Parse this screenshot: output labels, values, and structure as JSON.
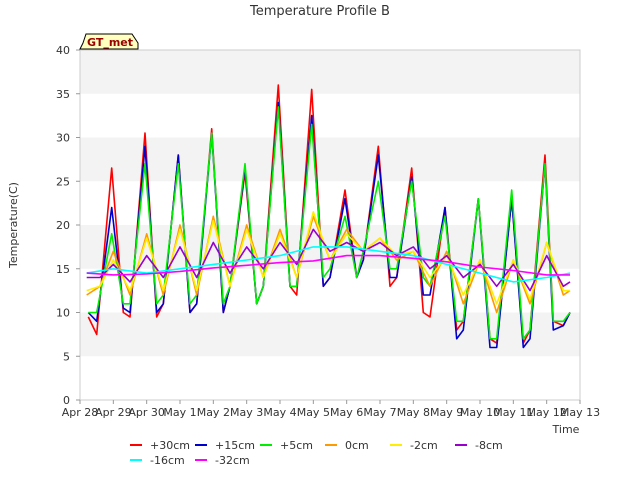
{
  "chart_data": {
    "type": "line",
    "title": "Temperature Profile B",
    "xlabel": "Time",
    "ylabel": "Temperature(C)",
    "ylim": [
      0,
      40
    ],
    "yticks": [
      0,
      5,
      10,
      15,
      20,
      25,
      30,
      35,
      40
    ],
    "xlim": [
      0,
      15
    ],
    "xticks": [
      0,
      1,
      2,
      3,
      4,
      5,
      6,
      7,
      8,
      9,
      10,
      11,
      12,
      13,
      14,
      15
    ],
    "xtick_labels": [
      "Apr 28",
      "Apr 29",
      "Apr 30",
      "May 1",
      "May 2",
      "May 3",
      "May 4",
      "May 5",
      "May 6",
      "May 7",
      "May 8",
      "May 9",
      "May 10",
      "May 11",
      "May 12",
      "May 13"
    ],
    "grid": "horizontal bands",
    "legend_placement": "bottom",
    "annotation": "GT_met",
    "series": [
      {
        "name": "+30cm",
        "color": "#ff0000",
        "x": [
          0.25,
          0.5,
          0.95,
          1.3,
          1.5,
          1.95,
          2.3,
          2.5,
          2.95,
          3.3,
          3.5,
          3.95,
          4.3,
          4.5,
          4.95,
          5.3,
          5.5,
          5.95,
          6.3,
          6.5,
          6.95,
          7.3,
          7.5,
          7.95,
          8.3,
          8.5,
          8.95,
          9.3,
          9.5,
          9.95,
          10.3,
          10.5,
          10.95,
          11.3,
          11.5,
          11.95,
          12.3,
          12.5,
          12.95,
          13.3,
          13.5,
          13.95,
          14.2,
          14.5,
          14.7
        ],
        "y": [
          9.5,
          7.5,
          26.5,
          10,
          9.5,
          30.5,
          9.5,
          11,
          28,
          10,
          11,
          31,
          10,
          13,
          26,
          11,
          13,
          36,
          13,
          12,
          35.5,
          13,
          14,
          24,
          14,
          16,
          29,
          13,
          14,
          26.5,
          10,
          9.5,
          22,
          8,
          9,
          23,
          7,
          6.5,
          23,
          6.5,
          8,
          28,
          9,
          8.5,
          10
        ]
      },
      {
        "name": "+15cm",
        "color": "#0000cc",
        "x": [
          0.25,
          0.5,
          0.95,
          1.3,
          1.5,
          1.95,
          2.3,
          2.5,
          2.95,
          3.3,
          3.5,
          3.95,
          4.3,
          4.5,
          4.95,
          5.3,
          5.5,
          5.95,
          6.3,
          6.5,
          6.95,
          7.3,
          7.5,
          7.95,
          8.3,
          8.5,
          8.95,
          9.3,
          9.5,
          9.95,
          10.3,
          10.5,
          10.95,
          11.3,
          11.5,
          11.95,
          12.3,
          12.5,
          12.95,
          13.3,
          13.5,
          13.95,
          14.2,
          14.5,
          14.7
        ],
        "y": [
          10,
          9,
          22,
          10.5,
          10,
          29,
          10,
          11,
          28,
          10,
          11,
          30.5,
          10,
          13,
          26.5,
          11,
          13,
          34,
          13,
          13,
          32.5,
          13,
          14,
          23,
          14,
          16,
          28,
          14,
          14,
          25.5,
          12,
          12,
          22,
          7,
          8,
          23,
          6,
          6,
          23,
          6,
          7,
          27,
          8,
          8.5,
          10
        ]
      },
      {
        "name": "+5cm",
        "color": "#00ee00",
        "x": [
          0.25,
          0.5,
          0.95,
          1.3,
          1.5,
          1.95,
          2.3,
          2.5,
          2.95,
          3.3,
          3.5,
          3.95,
          4.3,
          4.5,
          4.95,
          5.3,
          5.5,
          5.95,
          6.3,
          6.5,
          6.95,
          7.3,
          7.5,
          7.95,
          8.3,
          8.5,
          8.95,
          9.3,
          9.5,
          9.95,
          10.3,
          10.5,
          10.95,
          11.3,
          11.5,
          11.95,
          12.3,
          12.5,
          12.95,
          13.3,
          13.5,
          13.95,
          14.2,
          14.5,
          14.7
        ],
        "y": [
          10,
          10,
          19,
          11,
          11,
          27,
          11,
          12,
          27,
          11,
          12,
          30.5,
          11,
          13,
          27,
          11,
          13,
          33.5,
          13,
          13,
          31.5,
          14,
          15,
          21,
          14,
          17,
          25,
          15,
          15,
          25,
          14,
          13,
          21,
          9,
          9,
          23,
          7,
          7,
          24,
          7,
          8,
          27,
          9,
          9,
          10
        ]
      },
      {
        "name": "0cm",
        "color": "#ff9900",
        "x": [
          0.2,
          0.6,
          1.0,
          1.5,
          2.0,
          2.5,
          3.0,
          3.5,
          4.0,
          4.5,
          5.0,
          5.5,
          6.0,
          6.5,
          7.0,
          7.5,
          8.0,
          8.5,
          9.0,
          9.5,
          10.0,
          10.5,
          11.0,
          11.5,
          12.0,
          12.5,
          13.0,
          13.5,
          14.0,
          14.5,
          14.7
        ],
        "y": [
          12,
          13,
          17,
          12,
          19,
          12,
          20,
          12,
          21,
          13,
          20,
          14,
          19.5,
          14,
          21,
          16,
          19.5,
          17,
          18.5,
          16,
          17,
          13,
          17,
          11,
          16,
          10,
          16,
          11,
          18,
          12,
          12.5
        ]
      },
      {
        "name": "-2cm",
        "color": "#ffee00",
        "x": [
          0.2,
          0.6,
          1.0,
          1.5,
          2.0,
          2.5,
          3.0,
          3.5,
          4.0,
          4.5,
          5.0,
          5.5,
          6.0,
          6.5,
          7.0,
          7.5,
          8.0,
          8.5,
          9.0,
          9.5,
          10.0,
          10.5,
          11.0,
          11.5,
          12.0,
          12.5,
          13.0,
          13.5,
          14.0,
          14.5,
          14.7
        ],
        "y": [
          12.5,
          13,
          16,
          12.5,
          18.5,
          12.5,
          19.5,
          12.5,
          20.5,
          13,
          19.5,
          14,
          19,
          14,
          21.5,
          16,
          19,
          17,
          18.5,
          16.5,
          17,
          14,
          16.5,
          12,
          16,
          11,
          16,
          11.5,
          18,
          12.5,
          12.5
        ]
      },
      {
        "name": "-8cm",
        "color": "#9900cc",
        "x": [
          0.2,
          0.6,
          1.0,
          1.5,
          2.0,
          2.5,
          3.0,
          3.5,
          4.0,
          4.5,
          5.0,
          5.5,
          6.0,
          6.5,
          7.0,
          7.5,
          8.0,
          8.5,
          9.0,
          9.5,
          10.0,
          10.5,
          11.0,
          11.5,
          12.0,
          12.5,
          13.0,
          13.5,
          14.0,
          14.5,
          14.7
        ],
        "y": [
          14,
          14,
          15.5,
          13.5,
          16.5,
          14,
          17.5,
          14,
          18,
          14.5,
          17.5,
          15,
          18,
          15.5,
          19.5,
          17,
          18,
          17,
          18,
          16.5,
          17.5,
          15,
          16.5,
          14,
          15.5,
          13,
          15.5,
          12.5,
          16.5,
          13,
          13.5
        ]
      },
      {
        "name": "-16cm",
        "color": "#00ffff",
        "x": [
          0.2,
          1.0,
          2.0,
          3.0,
          4.0,
          5.0,
          6.0,
          7.0,
          7.3,
          8.0,
          9.0,
          10.0,
          11.0,
          12.0,
          13.0,
          14.0,
          14.7
        ],
        "y": [
          14.5,
          15,
          14.5,
          15,
          15.5,
          16,
          16.5,
          17.5,
          17.5,
          17.5,
          17,
          16.5,
          15.5,
          14.5,
          13.5,
          14,
          14.5
        ]
      },
      {
        "name": "-32cm",
        "color": "#ff00ff",
        "x": [
          0.2,
          1.0,
          2.0,
          3.0,
          4.0,
          5.0,
          6.0,
          7.0,
          8.0,
          9.0,
          10.0,
          11.0,
          12.0,
          13.0,
          14.0,
          14.7
        ],
        "y": [
          14.5,
          14.3,
          14.4,
          14.7,
          15.1,
          15.4,
          15.7,
          15.9,
          16.5,
          16.5,
          16.2,
          15.8,
          15.2,
          14.8,
          14.3,
          14.3
        ]
      }
    ]
  }
}
